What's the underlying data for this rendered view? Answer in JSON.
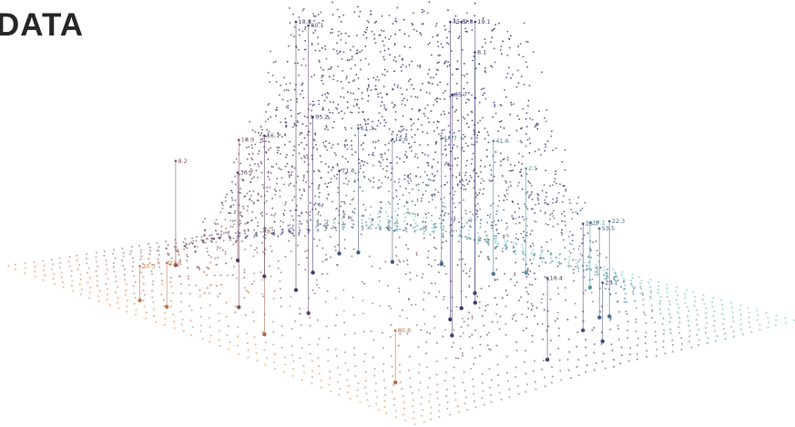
{
  "title": "DATA",
  "colors": {
    "orange": "#e0823a",
    "purple": "#3a2f6e",
    "teal": "#5cc4b4",
    "text": "#262626"
  },
  "labels": [
    {
      "text": "60.1"
    },
    {
      "text": "71.6"
    },
    {
      "text": "23.1"
    },
    {
      "text": "23.1"
    },
    {
      "text": "8.1"
    },
    {
      "text": "16.4"
    },
    {
      "text": "18.9"
    },
    {
      "text": "41.6"
    },
    {
      "text": "19.1"
    },
    {
      "text": "16.1"
    },
    {
      "text": "2.5"
    },
    {
      "text": "80.8"
    },
    {
      "text": "10.3"
    },
    {
      "text": "9.8"
    },
    {
      "text": "19.1"
    },
    {
      "text": "8.1"
    },
    {
      "text": "65.7"
    },
    {
      "text": "18.7"
    },
    {
      "text": "12.6"
    },
    {
      "text": "18.8"
    },
    {
      "text": "53.5"
    },
    {
      "text": "36.7"
    },
    {
      "text": "11.3"
    },
    {
      "text": "45.5"
    },
    {
      "text": "95.2"
    },
    {
      "text": "8.2"
    },
    {
      "text": "14.7"
    },
    {
      "text": "22.3"
    }
  ]
}
